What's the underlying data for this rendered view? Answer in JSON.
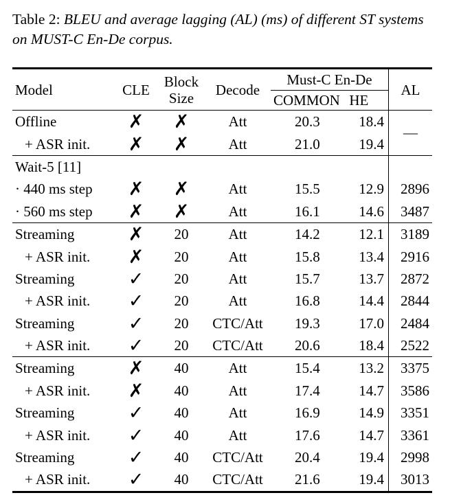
{
  "caption": {
    "label": "Table 2:",
    "text": "BLEU and average lagging (AL) (ms) of different ST systems on MUST-C En-De corpus."
  },
  "header": {
    "model": "Model",
    "cle": "CLE",
    "block_line1": "Block",
    "block_line2": "Size",
    "decode": "Decode",
    "group": "Must-C En-De",
    "common": "COMMON",
    "he": "HE",
    "al": "AL"
  },
  "glyphs": {
    "cross": "✗",
    "check": "✓",
    "dash": "—"
  },
  "rows": [
    {
      "model": "Offline",
      "cle": "✗",
      "block": "✗",
      "decode": "Att",
      "common": "20.3",
      "he": "18.4",
      "al": "—"
    },
    {
      "model": "+ ASR init.",
      "cle": "✗",
      "block": "✗",
      "decode": "Att",
      "common": "21.0",
      "he": "19.4",
      "al": ""
    },
    {
      "model": "Wait-5 [11]",
      "cle": "",
      "block": "",
      "decode": "",
      "common": "",
      "he": "",
      "al": ""
    },
    {
      "model": "· 440 ms step",
      "cle": "✗",
      "block": "✗",
      "decode": "Att",
      "common": "15.5",
      "he": "12.9",
      "al": "2896"
    },
    {
      "model": "· 560 ms step",
      "cle": "✗",
      "block": "✗",
      "decode": "Att",
      "common": "16.1",
      "he": "14.6",
      "al": "3487"
    },
    {
      "model": "Streaming",
      "cle": "✗",
      "block": "20",
      "decode": "Att",
      "common": "14.2",
      "he": "12.1",
      "al": "3189"
    },
    {
      "model": "+ ASR init.",
      "cle": "✗",
      "block": "20",
      "decode": "Att",
      "common": "15.8",
      "he": "13.4",
      "al": "2916"
    },
    {
      "model": "Streaming",
      "cle": "✓",
      "block": "20",
      "decode": "Att",
      "common": "15.7",
      "he": "13.7",
      "al": "2872"
    },
    {
      "model": "+ ASR init.",
      "cle": "✓",
      "block": "20",
      "decode": "Att",
      "common": "16.8",
      "he": "14.4",
      "al": "2844"
    },
    {
      "model": "Streaming",
      "cle": "✓",
      "block": "20",
      "decode": "CTC/Att",
      "common": "19.3",
      "he": "17.0",
      "al": "2484"
    },
    {
      "model": "+ ASR init.",
      "cle": "✓",
      "block": "20",
      "decode": "CTC/Att",
      "common": "20.6",
      "he": "18.4",
      "al": "2522"
    },
    {
      "model": "Streaming",
      "cle": "✗",
      "block": "40",
      "decode": "Att",
      "common": "15.4",
      "he": "13.2",
      "al": "3375"
    },
    {
      "model": "+ ASR init.",
      "cle": "✗",
      "block": "40",
      "decode": "Att",
      "common": "17.4",
      "he": "14.7",
      "al": "3586"
    },
    {
      "model": "Streaming",
      "cle": "✓",
      "block": "40",
      "decode": "Att",
      "common": "16.9",
      "he": "14.9",
      "al": "3351"
    },
    {
      "model": "+ ASR init.",
      "cle": "✓",
      "block": "40",
      "decode": "Att",
      "common": "17.6",
      "he": "14.7",
      "al": "3361"
    },
    {
      "model": "Streaming",
      "cle": "✓",
      "block": "40",
      "decode": "CTC/Att",
      "common": "20.4",
      "he": "19.4",
      "al": "2998"
    },
    {
      "model": "+ ASR init.",
      "cle": "✓",
      "block": "40",
      "decode": "CTC/Att",
      "common": "21.6",
      "he": "19.4",
      "al": "3013"
    }
  ]
}
